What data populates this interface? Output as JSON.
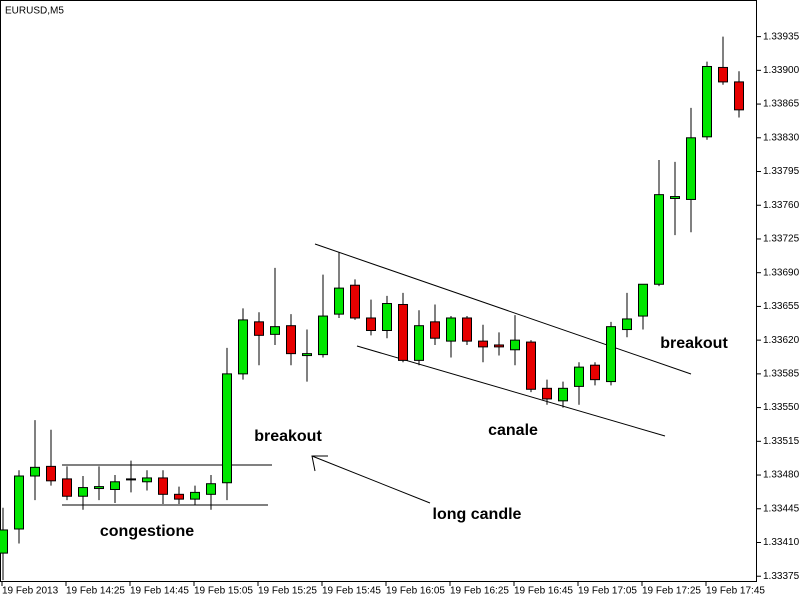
{
  "chart_data": {
    "type": "candlestick",
    "title": "EURUSD,M5",
    "categories": [
      "19 Feb 2013",
      null,
      null,
      null,
      "19 Feb 14:25",
      null,
      null,
      null,
      "19 Feb 14:45",
      null,
      null,
      null,
      "19 Feb 15:05",
      null,
      null,
      null,
      "19 Feb 15:25",
      null,
      null,
      null,
      "19 Feb 15:45",
      null,
      null,
      null,
      "19 Feb 16:05",
      null,
      null,
      null,
      "19 Feb 16:25",
      null,
      null,
      null,
      "19 Feb 16:45",
      null,
      null,
      null,
      "19 Feb 17:05",
      null,
      null,
      null,
      "19 Feb 17:25",
      null,
      null,
      null,
      "19 Feb 17:45",
      null,
      null
    ],
    "open": [
      1.33399,
      1.33424,
      1.33479,
      1.33489,
      1.33476,
      1.33458,
      1.33466,
      1.33465,
      1.33475,
      1.33473,
      1.33477,
      1.3346,
      1.33455,
      1.3346,
      1.33472,
      1.33585,
      1.33639,
      1.33626,
      1.33635,
      1.33604,
      1.33605,
      1.33647,
      1.33677,
      1.33643,
      1.3363,
      1.33657,
      1.33599,
      1.33639,
      1.33619,
      1.33643,
      1.33619,
      1.33615,
      1.3361,
      1.33618,
      1.3357,
      1.33557,
      1.33572,
      1.33594,
      1.33577,
      1.33631,
      1.33645,
      1.33678,
      1.33767,
      1.33766,
      1.33831,
      1.33903,
      1.33888
    ],
    "high": [
      1.33446,
      1.33485,
      1.33537,
      1.33527,
      1.33489,
      1.33479,
      1.33489,
      1.3348,
      1.33495,
      1.33485,
      1.33485,
      1.33468,
      1.33469,
      1.3348,
      1.33612,
      1.33653,
      1.33649,
      1.33695,
      1.33647,
      1.33631,
      1.33688,
      1.33711,
      1.33683,
      1.33662,
      1.33666,
      1.33669,
      1.33651,
      1.33657,
      1.33645,
      1.33645,
      1.33636,
      1.33628,
      1.33646,
      1.3362,
      1.33579,
      1.33577,
      1.33597,
      1.33597,
      1.33639,
      1.33669,
      1.33678,
      1.33807,
      1.33805,
      1.33861,
      1.33909,
      1.33935,
      1.33899
    ],
    "low": [
      1.33371,
      1.33409,
      1.33454,
      1.33469,
      1.33454,
      1.33444,
      1.33454,
      1.33451,
      1.33462,
      1.33464,
      1.3345,
      1.3345,
      1.33449,
      1.33444,
      1.33454,
      1.33579,
      1.33594,
      1.33615,
      1.33594,
      1.33577,
      1.33602,
      1.33643,
      1.33641,
      1.33625,
      1.33622,
      1.33597,
      1.33594,
      1.33615,
      1.33602,
      1.33615,
      1.33597,
      1.33604,
      1.33594,
      1.33566,
      1.33553,
      1.3355,
      1.33553,
      1.33573,
      1.33573,
      1.33623,
      1.33631,
      1.33676,
      1.33729,
      1.33732,
      1.33828,
      1.33885,
      1.33851
    ],
    "close": [
      1.33423,
      1.33479,
      1.33488,
      1.33474,
      1.33458,
      1.33467,
      1.33468,
      1.33473,
      1.33476,
      1.33477,
      1.3346,
      1.33455,
      1.33462,
      1.33471,
      1.33585,
      1.33641,
      1.33625,
      1.33634,
      1.33606,
      1.33606,
      1.33645,
      1.33674,
      1.33643,
      1.3363,
      1.33658,
      1.33599,
      1.33635,
      1.33622,
      1.33643,
      1.33619,
      1.33613,
      1.33613,
      1.3362,
      1.33569,
      1.33559,
      1.3357,
      1.33592,
      1.33579,
      1.33634,
      1.33642,
      1.33678,
      1.33771,
      1.33769,
      1.3383,
      1.33904,
      1.33888,
      1.33859
    ],
    "up_color": "#00e600",
    "down_color": "#e60000",
    "ylim": [
      1.33369,
      1.33973
    ],
    "yticks": [
      1.33375,
      {
        "value": 1.3341,
        "label": "1.33410"
      },
      1.33445,
      {
        "value": 1.3348,
        "label": "1.33480"
      },
      1.33515,
      {
        "value": 1.3355,
        "label": "1.33550"
      },
      1.33585,
      {
        "value": 1.3362,
        "label": "1.33620"
      },
      1.33655,
      {
        "value": 1.3369,
        "label": "1.33690"
      },
      1.33725,
      {
        "value": 1.3376,
        "label": "1.33760"
      },
      1.33795,
      {
        "value": 1.3383,
        "label": "1.33830"
      },
      1.33865,
      {
        "value": 1.339,
        "label": "1.33900"
      },
      1.33935
    ],
    "annotations": [
      "congestione",
      "breakout",
      "canale",
      "long candle",
      "breakout"
    ]
  }
}
